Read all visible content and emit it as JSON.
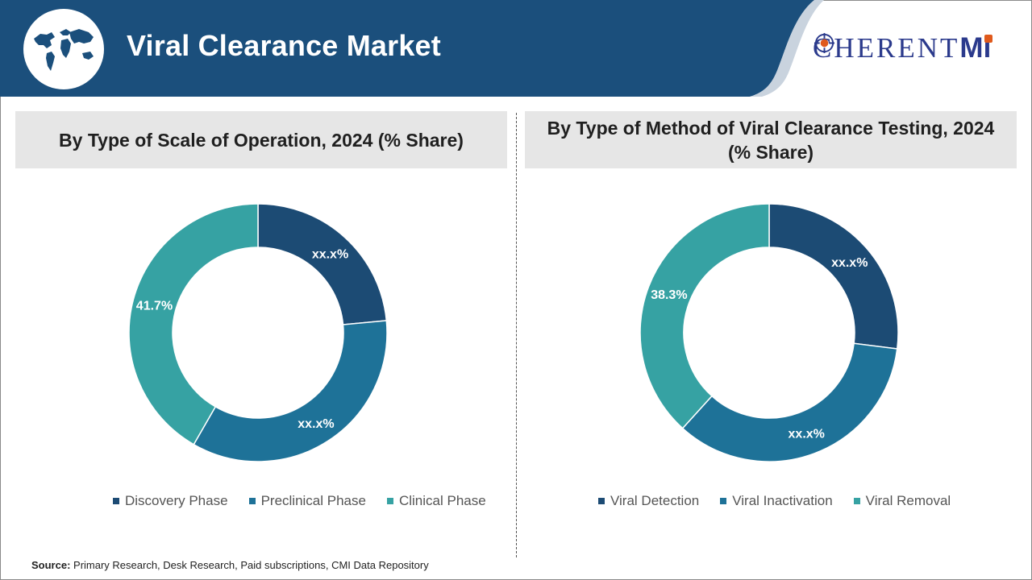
{
  "header": {
    "title": "Viral Clearance Market",
    "logo_text_1": "C",
    "logo_text_2": "HERENT",
    "logo_text_3": "M",
    "logo_text_4": "i"
  },
  "colors": {
    "header_blue": "#1b4f7c",
    "dark_blue": "#1c4b74",
    "mid_blue": "#1e7298",
    "teal": "#36a2a3",
    "panel_gray": "#e6e6e6",
    "logo_blue": "#2b3a8c",
    "logo_orange": "#e05a1c"
  },
  "icons": {
    "globe": "world-map-globe-icon",
    "logo_o": "crosshair-circle-icon"
  },
  "source": {
    "label": "Source:",
    "text": " Primary Research, Desk Research, Paid subscriptions, CMI Data Repository"
  },
  "chart_data": [
    {
      "type": "pie",
      "title": "By Type of Scale of Operation, 2024 (% Share)",
      "categories": [
        "Discovery Phase",
        "Preclinical Phase",
        "Clinical Phase"
      ],
      "values": [
        23.5,
        34.8,
        41.7
      ],
      "labels": [
        "xx.x%",
        "xx.x%",
        "41.7%"
      ],
      "colors": [
        "#1c4b74",
        "#1e7298",
        "#36a2a3"
      ],
      "legend": "bottom"
    },
    {
      "type": "pie",
      "title": "By Type of Method of Viral Clearance Testing, 2024 (% Share)",
      "categories": [
        "Viral Detection",
        "Viral Inactivation",
        "Viral Removal"
      ],
      "values": [
        27.0,
        34.7,
        38.3
      ],
      "labels": [
        "xx.x%",
        "xx.x%",
        "38.3%"
      ],
      "colors": [
        "#1c4b74",
        "#1e7298",
        "#36a2a3"
      ],
      "legend": "bottom"
    }
  ]
}
